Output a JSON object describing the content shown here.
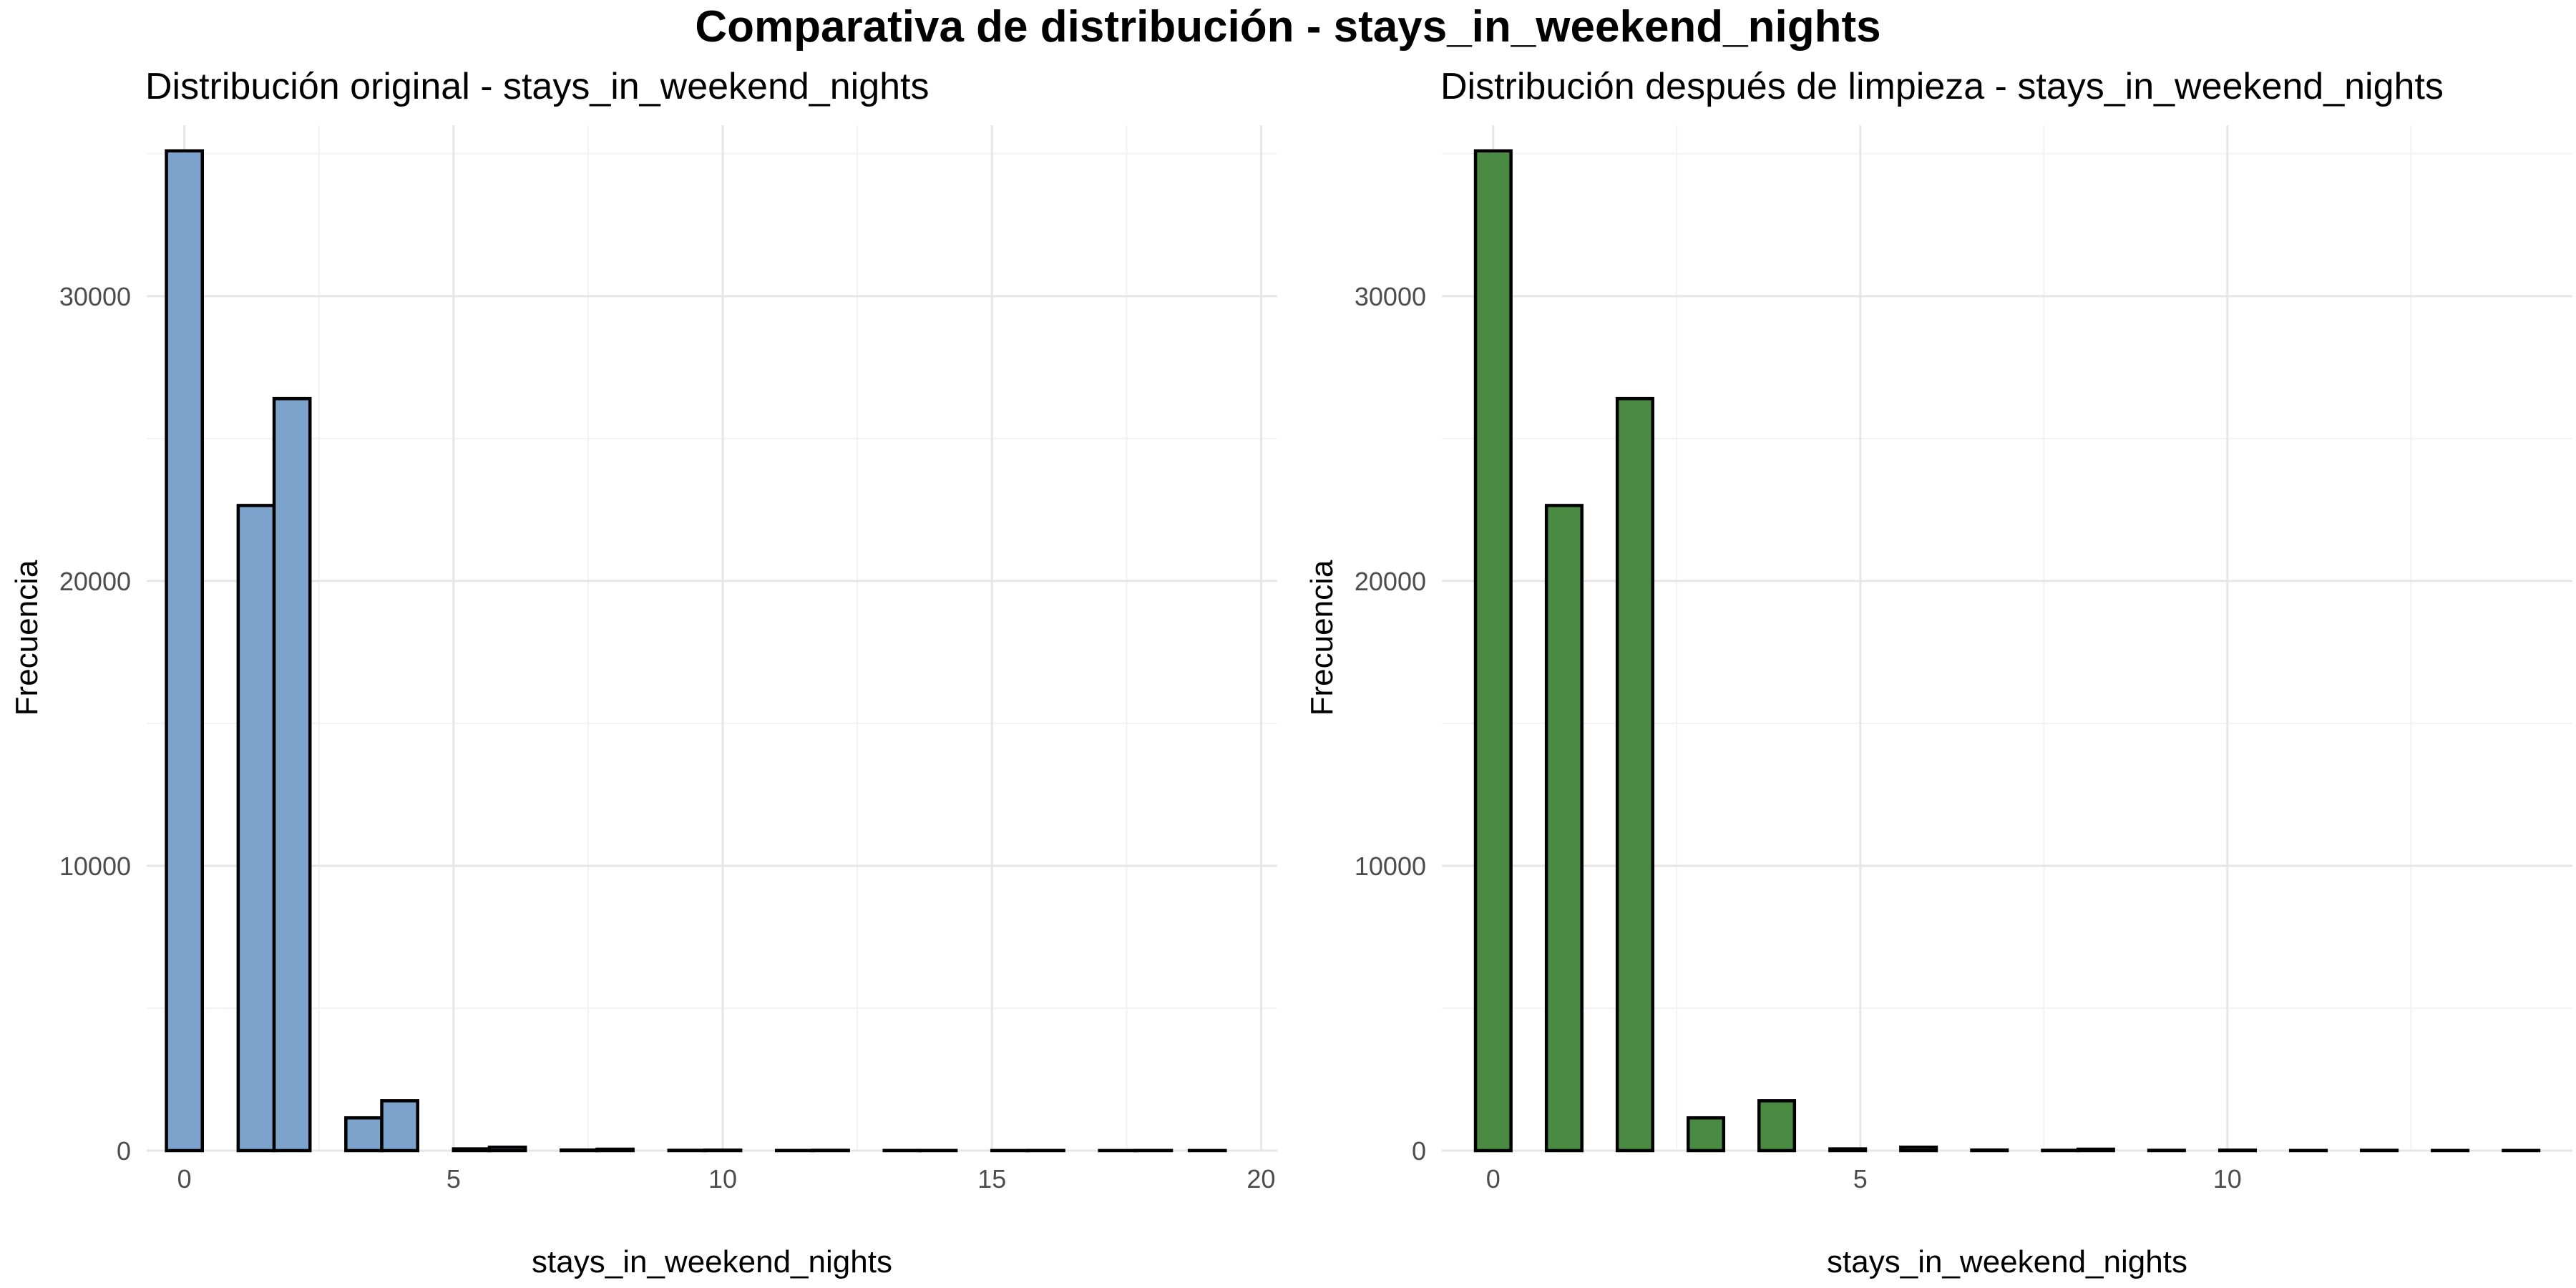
{
  "title": "Comparativa de distribución - stays_in_weekend_nights",
  "chart_data": [
    {
      "type": "bar",
      "title": "Distribución original - stays_in_weekend_nights",
      "xlabel": "stays_in_weekend_nights",
      "ylabel": "Frecuencia",
      "fill_color": "#7BA3CB",
      "xlim": [
        -0.7,
        20.3
      ],
      "ylim": [
        0,
        36000
      ],
      "x_ticks": [
        0,
        5,
        10,
        15,
        20
      ],
      "y_ticks": [
        0,
        10000,
        20000,
        30000
      ],
      "x_tick_labels": [
        "0",
        "5",
        "10",
        "15",
        "20"
      ],
      "y_tick_labels": [
        "0",
        "10000",
        "20000",
        "30000"
      ],
      "bin_width": 0.667,
      "bins": [
        {
          "center": 0.0,
          "count": 35100
        },
        {
          "center": 0.667,
          "count": 0
        },
        {
          "center": 1.333,
          "count": 22650
        },
        {
          "center": 2.0,
          "count": 26400
        },
        {
          "center": 2.667,
          "count": 0
        },
        {
          "center": 3.333,
          "count": 1150
        },
        {
          "center": 4.0,
          "count": 1750
        },
        {
          "center": 4.667,
          "count": 0
        },
        {
          "center": 5.333,
          "count": 60
        },
        {
          "center": 6.0,
          "count": 120
        },
        {
          "center": 6.667,
          "count": 0
        },
        {
          "center": 7.333,
          "count": 20
        },
        {
          "center": 8.0,
          "count": 50
        },
        {
          "center": 8.667,
          "count": 0
        },
        {
          "center": 9.333,
          "count": 10
        },
        {
          "center": 10.0,
          "count": 15
        },
        {
          "center": 10.667,
          "count": 0
        },
        {
          "center": 11.333,
          "count": 5
        },
        {
          "center": 12.0,
          "count": 10
        },
        {
          "center": 12.667,
          "count": 0
        },
        {
          "center": 13.333,
          "count": 5
        },
        {
          "center": 14.0,
          "count": 5
        },
        {
          "center": 14.667,
          "count": 0
        },
        {
          "center": 15.333,
          "count": 3
        },
        {
          "center": 16.0,
          "count": 5
        },
        {
          "center": 16.667,
          "count": 0
        },
        {
          "center": 17.333,
          "count": 2
        },
        {
          "center": 18.0,
          "count": 5
        },
        {
          "center": 18.667,
          "count": 0
        },
        {
          "center": 19.0,
          "count": 3
        }
      ]
    },
    {
      "type": "bar",
      "title": "Distribución después de limpieza - stays_in_weekend_nights",
      "xlabel": "stays_in_weekend_nights",
      "ylabel": "Frecuencia",
      "fill_color": "#4A8A42",
      "xlim": [
        -0.7,
        14.7
      ],
      "ylim": [
        0,
        36000
      ],
      "x_ticks": [
        0,
        5,
        10
      ],
      "y_ticks": [
        0,
        10000,
        20000,
        30000
      ],
      "x_tick_labels": [
        "0",
        "5",
        "10"
      ],
      "y_tick_labels": [
        "0",
        "10000",
        "20000",
        "30000"
      ],
      "bin_width": 0.483,
      "bins": [
        {
          "center": 0.0,
          "count": 35100
        },
        {
          "center": 0.483,
          "count": 0
        },
        {
          "center": 0.966,
          "count": 22650
        },
        {
          "center": 1.448,
          "count": 0
        },
        {
          "center": 1.931,
          "count": 26400
        },
        {
          "center": 2.414,
          "count": 0
        },
        {
          "center": 2.897,
          "count": 1150
        },
        {
          "center": 3.379,
          "count": 0
        },
        {
          "center": 3.862,
          "count": 1750
        },
        {
          "center": 4.345,
          "count": 0
        },
        {
          "center": 4.828,
          "count": 60
        },
        {
          "center": 5.31,
          "count": 0
        },
        {
          "center": 5.793,
          "count": 120
        },
        {
          "center": 6.276,
          "count": 0
        },
        {
          "center": 6.759,
          "count": 20
        },
        {
          "center": 7.241,
          "count": 0
        },
        {
          "center": 7.724,
          "count": 10
        },
        {
          "center": 8.207,
          "count": 50
        },
        {
          "center": 8.69,
          "count": 0
        },
        {
          "center": 9.172,
          "count": 10
        },
        {
          "center": 9.655,
          "count": 0
        },
        {
          "center": 10.138,
          "count": 15
        },
        {
          "center": 10.621,
          "count": 0
        },
        {
          "center": 11.103,
          "count": 5
        },
        {
          "center": 11.586,
          "count": 0
        },
        {
          "center": 12.069,
          "count": 10
        },
        {
          "center": 12.552,
          "count": 0
        },
        {
          "center": 13.034,
          "count": 5
        },
        {
          "center": 13.517,
          "count": 0
        },
        {
          "center": 14.0,
          "count": 5
        }
      ]
    }
  ]
}
